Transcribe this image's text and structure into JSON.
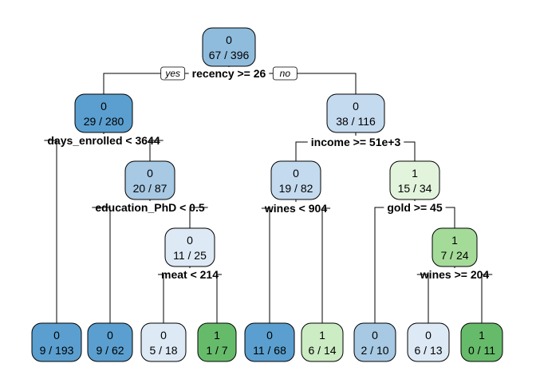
{
  "tree": {
    "root_branch_labels": {
      "yes": "yes",
      "no": "no"
    },
    "colors": {
      "blue_1": "#5a9fcf",
      "blue_2": "#8fbcdc",
      "blue_3": "#a7c9e3",
      "blue_4": "#c4daef",
      "blue_5": "#dde9f5",
      "green_1": "#66bb6a",
      "green_2": "#a5db99",
      "green_3": "#ccecc4",
      "green_4": "#e3f4dd"
    },
    "nodes": [
      {
        "id": "n1",
        "class": "0",
        "counts": "67 / 396",
        "color": "blue_2"
      },
      {
        "id": "n2",
        "class": "0",
        "counts": "29 / 280",
        "color": "blue_1"
      },
      {
        "id": "n3",
        "class": "0",
        "counts": "38 / 116",
        "color": "blue_4"
      },
      {
        "id": "n5",
        "class": "0",
        "counts": "20 / 87",
        "color": "blue_3"
      },
      {
        "id": "n11",
        "class": "0",
        "counts": "11 / 25",
        "color": "blue_5"
      },
      {
        "id": "n6",
        "class": "0",
        "counts": "19 / 82",
        "color": "blue_4"
      },
      {
        "id": "n7",
        "class": "1",
        "counts": "15 / 34",
        "color": "green_4"
      },
      {
        "id": "n15",
        "class": "1",
        "counts": "7 / 24",
        "color": "green_2"
      },
      {
        "id": "l1",
        "class": "0",
        "counts": "9 / 193",
        "color": "blue_1"
      },
      {
        "id": "l2",
        "class": "0",
        "counts": "9 / 62",
        "color": "blue_1"
      },
      {
        "id": "l3",
        "class": "0",
        "counts": "5 / 18",
        "color": "blue_5"
      },
      {
        "id": "l4",
        "class": "1",
        "counts": "1 / 7",
        "color": "green_1"
      },
      {
        "id": "l5",
        "class": "0",
        "counts": "11 / 68",
        "color": "blue_1"
      },
      {
        "id": "l6",
        "class": "1",
        "counts": "6 / 14",
        "color": "green_3"
      },
      {
        "id": "l7",
        "class": "0",
        "counts": "2 / 10",
        "color": "blue_3"
      },
      {
        "id": "l8",
        "class": "0",
        "counts": "6 / 13",
        "color": "blue_5"
      },
      {
        "id": "l9",
        "class": "1",
        "counts": "0 / 11",
        "color": "green_1"
      }
    ],
    "splits": [
      {
        "id": "s1",
        "label": "recency >= 26"
      },
      {
        "id": "s2",
        "label": "days_enrolled < 3644"
      },
      {
        "id": "s3",
        "label": "income >= 51e+3"
      },
      {
        "id": "s5",
        "label": "education_PhD < 0.5"
      },
      {
        "id": "s11",
        "label": "meat < 214"
      },
      {
        "id": "s6",
        "label": "wines < 904"
      },
      {
        "id": "s7",
        "label": "gold >= 45"
      },
      {
        "id": "s15",
        "label": "wines >= 204"
      }
    ]
  }
}
